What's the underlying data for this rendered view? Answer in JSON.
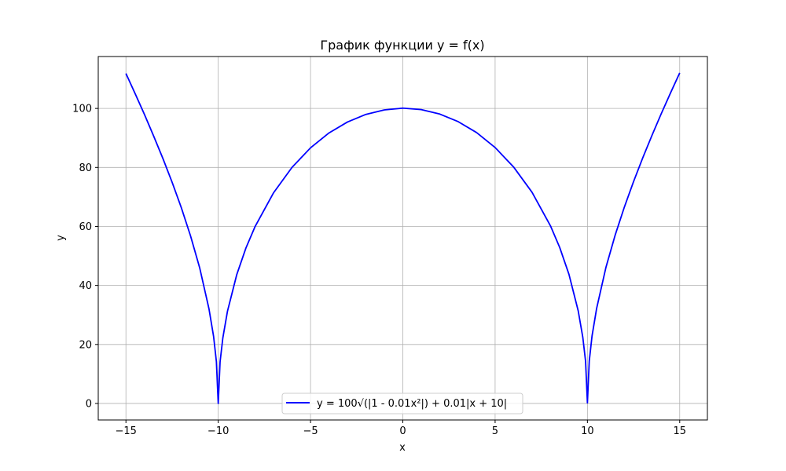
{
  "chart_data": {
    "type": "line",
    "title": "График функции y = f(x)",
    "xlabel": "x",
    "ylabel": "y",
    "xlim": [
      -16.5,
      16.5
    ],
    "ylim": [
      -5.6,
      117.6
    ],
    "xticks": [
      -15,
      -10,
      -5,
      0,
      5,
      10,
      15
    ],
    "xtick_labels": [
      "−15",
      "−10",
      "−5",
      "0",
      "5",
      "10",
      "15"
    ],
    "yticks": [
      0,
      20,
      40,
      60,
      80,
      100
    ],
    "ytick_labels": [
      "0",
      "20",
      "40",
      "60",
      "80",
      "100"
    ],
    "grid": true,
    "legend_position": "lower-center",
    "series": [
      {
        "name": "y = 100√(|1 - 0.01x²|) + 0.01|x + 10|",
        "color": "#0000ff",
        "x": [
          -15,
          -14.5,
          -14,
          -13.5,
          -13,
          -12.5,
          -12,
          -11.5,
          -11,
          -10.5,
          -10.25,
          -10.1,
          -10,
          -9.9,
          -9.75,
          -9.5,
          -9,
          -8.5,
          -8,
          -7,
          -6,
          -5,
          -4,
          -3,
          -2,
          -1,
          0,
          1,
          2,
          3,
          4,
          5,
          6,
          7,
          8,
          8.5,
          9,
          9.5,
          9.75,
          9.9,
          10,
          10.1,
          10.25,
          10.5,
          11,
          11.5,
          12,
          12.5,
          13,
          13.5,
          14,
          14.5,
          15
        ],
        "y": [
          111.85,
          105.0,
          98.0,
          90.66,
          83.07,
          75.02,
          66.36,
          56.8,
          45.85,
          32.02,
          22.65,
          14.19,
          0.0,
          14.11,
          22.22,
          31.23,
          43.6,
          52.69,
          60.02,
          71.44,
          80.04,
          86.65,
          91.7,
          95.4,
          97.99,
          99.51,
          100.1,
          99.61,
          98.1,
          95.52,
          91.8,
          86.75,
          80.16,
          71.58,
          60.18,
          52.86,
          43.78,
          31.42,
          22.42,
          14.31,
          0.2,
          14.39,
          22.85,
          32.23,
          46.05,
          57.01,
          66.54,
          75.22,
          83.29,
          90.9,
          98.22,
          105.22,
          112.05
        ]
      }
    ]
  }
}
